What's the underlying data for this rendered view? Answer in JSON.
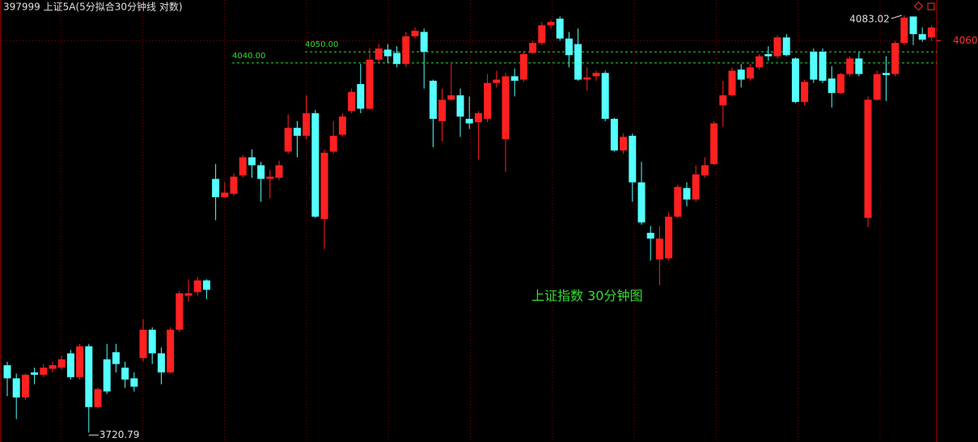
{
  "chart_data": {
    "type": "candlestick",
    "title": "397999 上证5A(5分拟合30分钟线 对数)",
    "annotation": "上证指数 30分钟图",
    "log": true,
    "ylim": [
      3713,
      4097
    ],
    "yticks": [
      4060
    ],
    "grid": true,
    "up_color": "#ff2020",
    "down_color": "#54ffff",
    "open": [
      3777,
      3766,
      3750,
      3771,
      3769,
      3774,
      3775,
      3787,
      3767,
      3793,
      3742,
      3782,
      3788,
      3775,
      3766,
      3783,
      3807,
      3787,
      3771,
      3807,
      3836,
      3839,
      3849,
      3937,
      3921,
      3924,
      3940,
      3956,
      3949,
      3937,
      3938,
      3961,
      3982,
      3975,
      3995,
      3902,
      3961,
      3976,
      3997,
      4021,
      3999,
      4043,
      4052,
      4049,
      4039,
      4064,
      4068,
      4024,
      3988,
      4007,
      4011,
      3990,
      3987,
      3990,
      4022,
      3972,
      4028,
      4025,
      4049,
      4058,
      4074,
      4080,
      4062,
      4057,
      4025,
      4028,
      4031,
      3990,
      3962,
      3975,
      3934,
      3890,
      3867,
      3868,
      3904,
      3929,
      3919,
      3940,
      3950,
      4002,
      4011,
      4034,
      4026,
      4036,
      4048,
      4046,
      4063,
      4044,
      4005,
      4050,
      4050,
      4026,
      4013,
      4030,
      4044,
      3903,
      4007,
      4031,
      4030,
      4058,
      4082,
      4066,
      4063
    ],
    "high": [
      3780,
      3770,
      3770,
      3775,
      3778,
      3780,
      3785,
      3790,
      3795,
      3795,
      3758,
      3795,
      3795,
      3780,
      3771,
      3816,
      3809,
      3792,
      3809,
      3840,
      3850,
      3852,
      3850,
      3950,
      3934,
      3942,
      3958,
      3963,
      3952,
      3945,
      3953,
      3994,
      3988,
      4011,
      3998,
      3963,
      3988,
      3995,
      4017,
      4039,
      4053,
      4057,
      4057,
      4055,
      4068,
      4072,
      4071,
      4025,
      4017,
      4039,
      4017,
      4010,
      3997,
      4030,
      4033,
      4031,
      4035,
      4050,
      4060,
      4077,
      4079,
      4082,
      4068,
      4071,
      4036,
      4033,
      4033,
      3991,
      3977,
      3977,
      3952,
      3896,
      3896,
      3908,
      3932,
      3934,
      3949,
      3956,
      3988,
      4024,
      4036,
      4039,
      4039,
      4048,
      4055,
      4065,
      4066,
      4045,
      4025,
      4053,
      4053,
      4037,
      4031,
      4046,
      4050,
      4010,
      4033,
      4046,
      4060,
      4083.02,
      4082,
      4072,
      4074
    ],
    "low": [
      3751,
      3732,
      3748,
      3761,
      3767,
      3771,
      3773,
      3765,
      3765,
      3720.79,
      3741,
      3753,
      3771,
      3758,
      3755,
      3780,
      3778,
      3761,
      3770,
      3805,
      3831,
      3836,
      3833,
      3901,
      3920,
      3922,
      3938,
      3938,
      3917,
      3920,
      3936,
      3959,
      3956,
      3972,
      3903,
      3876,
      3959,
      3974,
      3995,
      3995,
      3998,
      4040,
      4040,
      4036,
      4036,
      4062,
      4017,
      3965,
      3970,
      4006,
      3974,
      3981,
      3954,
      3987,
      4018,
      3943,
      4010,
      4023,
      4048,
      4056,
      4071,
      4060,
      4036,
      4024,
      4015,
      4024,
      3988,
      3961,
      3959,
      3917,
      3897,
      3866,
      3845,
      3866,
      3903,
      3913,
      3917,
      3938,
      3949,
      3983,
      4010,
      4018,
      4024,
      4034,
      4042,
      4044,
      4046,
      4004,
      4002,
      4022,
      4022,
      4000,
      4012,
      4028,
      4028,
      3895,
      4006,
      4006,
      4028,
      4056,
      4056,
      4059,
      4060
    ],
    "close": [
      3766,
      3750,
      3769,
      3769,
      3775,
      3777,
      3782,
      3767,
      3793,
      3742,
      3757,
      3755,
      3778,
      3765,
      3759,
      3807,
      3787,
      3771,
      3807,
      3838,
      3838,
      3849,
      3841,
      3921,
      3925,
      3939,
      3956,
      3949,
      3937,
      3939,
      3949,
      3982,
      3975,
      3995,
      3904,
      3960,
      3975,
      3992,
      4014,
      3999,
      4043,
      4053,
      4046,
      4039,
      4064,
      4069,
      4050,
      3990,
      4007,
      4011,
      3992,
      3986,
      3995,
      4022,
      4025,
      4028,
      4024,
      4048,
      4058,
      4074,
      4077,
      4062,
      4047,
      4025,
      4027,
      4031,
      3990,
      3962,
      3974,
      3934,
      3899,
      3885,
      3885,
      3904,
      3930,
      3919,
      3941,
      3949,
      3986,
      4011,
      4033,
      4025,
      4036,
      4046,
      4046,
      4063,
      4047,
      4005,
      4023,
      4025,
      4024,
      4013,
      4030,
      4044,
      4030,
      4007,
      4030,
      4029,
      4058,
      4081,
      4066,
      4061,
      4072
    ],
    "hlines": [
      {
        "value": 4050,
        "label": "4050.00"
      },
      {
        "value": 4040,
        "label": "4040.00"
      }
    ],
    "hline_color": "#33dd33"
  }
}
